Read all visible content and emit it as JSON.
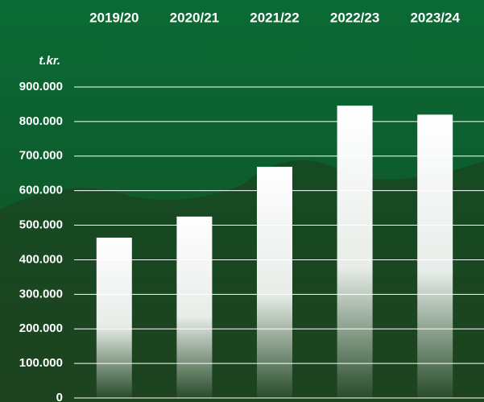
{
  "chart_data": {
    "type": "bar",
    "unit": "t.kr.",
    "categories": [
      "2019/20",
      "2020/21",
      "2021/22",
      "2022/23",
      "2023/24"
    ],
    "values": [
      464000,
      525000,
      669000,
      846000,
      820000
    ],
    "color": "#ffffff",
    "ylim": [
      0,
      900000
    ],
    "yticks": [
      0,
      {
        "value": 100000,
        "label": "100.000"
      },
      {
        "value": 200000,
        "label": "200.000"
      },
      {
        "value": 300000,
        "label": "300.000"
      },
      {
        "value": 400000,
        "label": "400.000"
      },
      {
        "value": 500000,
        "label": "500.000"
      },
      {
        "value": 600000,
        "label": "600.000"
      },
      {
        "value": 700000,
        "label": "700.000"
      },
      {
        "value": 800000,
        "label": "800.000"
      },
      {
        "value": 900000,
        "label": "900.000"
      }
    ],
    "grid": true
  }
}
